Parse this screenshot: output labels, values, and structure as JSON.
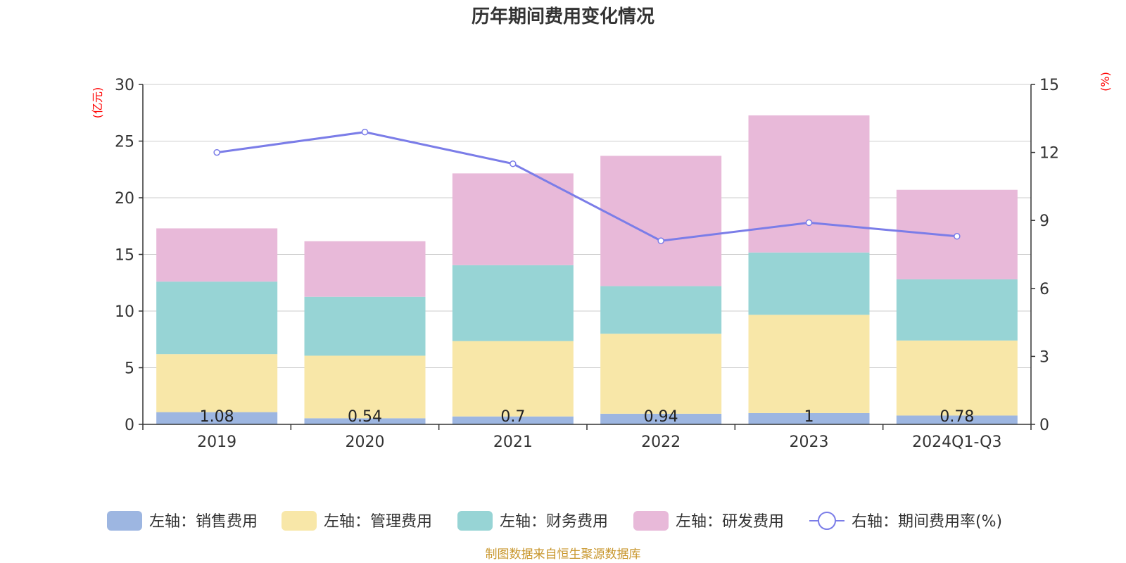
{
  "chart_data": {
    "type": "bar",
    "title": "历年期间费用变化情况",
    "categories": [
      "2019",
      "2020",
      "2021",
      "2022",
      "2023",
      "2024Q1-Q3"
    ],
    "stacked": true,
    "series": [
      {
        "name": "左轴：销售费用",
        "axis": "left",
        "color": "#9db6e1",
        "values": [
          1.08,
          0.54,
          0.7,
          0.94,
          1,
          0.78
        ],
        "labels": [
          "1.08",
          "0.54",
          "0.7",
          "0.94",
          "1",
          "0.78"
        ]
      },
      {
        "name": "左轴：管理费用",
        "axis": "left",
        "color": "#f8e7a8",
        "values": [
          5.12,
          5.52,
          6.65,
          7.06,
          8.67,
          6.62
        ]
      },
      {
        "name": "左轴：财务费用",
        "axis": "left",
        "color": "#97d4d5",
        "values": [
          6.4,
          5.2,
          6.7,
          4.2,
          5.5,
          5.4
        ]
      },
      {
        "name": "左轴：研发费用",
        "axis": "left",
        "color": "#e8b9d9",
        "values": [
          4.7,
          4.9,
          8.1,
          11.5,
          12.1,
          7.9
        ]
      }
    ],
    "line_series": {
      "name": "右轴：期间费用率(%)",
      "axis": "right",
      "color": "#7b7de8",
      "values": [
        12.0,
        12.9,
        11.5,
        8.1,
        8.9,
        8.3
      ]
    },
    "y_left": {
      "unit": "(亿元)",
      "min": 0,
      "max": 30,
      "ticks": [
        0,
        5,
        10,
        15,
        20,
        25,
        30
      ]
    },
    "y_right": {
      "unit": "(%)",
      "min": 0,
      "max": 15,
      "ticks": [
        0,
        3,
        6,
        9,
        12,
        15
      ]
    },
    "grid": true,
    "legend_position": "bottom"
  },
  "source": "制图数据来自恒生聚源数据库"
}
